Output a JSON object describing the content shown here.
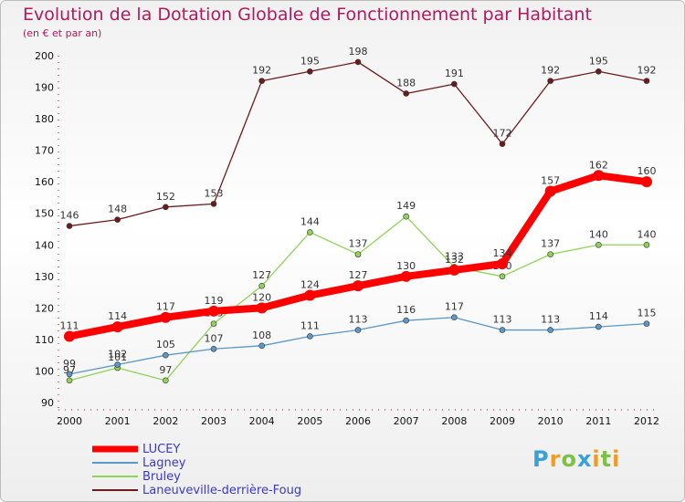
{
  "chart_data": {
    "type": "line",
    "title": "Evolution de la Dotation Globale de Fonctionnement par Habitant",
    "subtitle": "(en € et par an)",
    "xlabel": "",
    "ylabel": "",
    "ylim": [
      90,
      200
    ],
    "yticks": [
      90,
      100,
      110,
      120,
      130,
      140,
      150,
      160,
      170,
      180,
      190,
      200
    ],
    "categories": [
      "2000",
      "2001",
      "2002",
      "2003",
      "2004",
      "2005",
      "2006",
      "2007",
      "2008",
      "2009",
      "2010",
      "2011",
      "2012"
    ],
    "legend_position": "bottom-left",
    "series": [
      {
        "name": "Laneuveville-derrière-Foug",
        "color": "#6b1b1b",
        "values": [
          146,
          148,
          152,
          153,
          192,
          195,
          198,
          188,
          191,
          172,
          192,
          195,
          192
        ]
      },
      {
        "name": "Bruley",
        "color": "#8fd456",
        "values": [
          97,
          101,
          97,
          115,
          127,
          144,
          137,
          149,
          133,
          130,
          137,
          140,
          140
        ]
      },
      {
        "name": "Lagney",
        "color": "#5b97c7",
        "values": [
          99,
          102,
          105,
          107,
          108,
          111,
          113,
          116,
          117,
          113,
          113,
          114,
          115
        ]
      },
      {
        "name": "LUCEY",
        "color": "#ff0000",
        "values": [
          111,
          114,
          117,
          119,
          120,
          124,
          127,
          130,
          132,
          134,
          157,
          162,
          160
        ]
      }
    ]
  },
  "logo": {
    "text": "Proxiti",
    "letters": [
      {
        "char": "P",
        "color": "#3aa0d8"
      },
      {
        "char": "r",
        "color": "#f29b1e"
      },
      {
        "char": "o",
        "color": "#7cc243"
      },
      {
        "char": "x",
        "color": "#3aa0d8"
      },
      {
        "char": "i",
        "color": "#f29b1e"
      },
      {
        "char": "t",
        "color": "#7cc243"
      },
      {
        "char": "i",
        "color": "#f29b1e"
      }
    ]
  }
}
